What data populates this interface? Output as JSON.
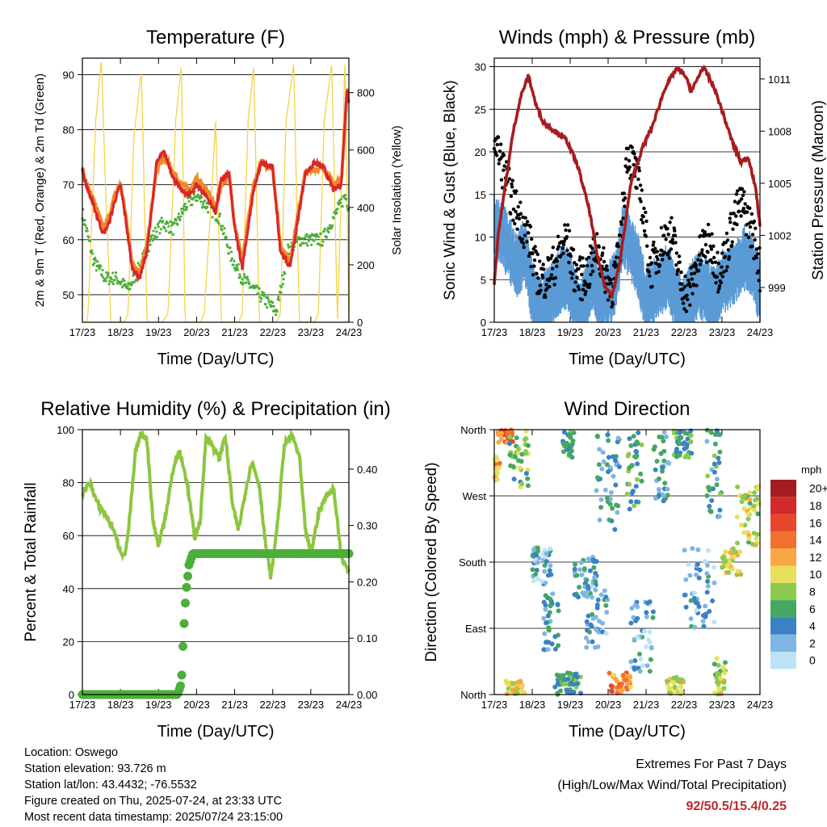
{
  "x_tick_labels": [
    "17/23",
    "18/23",
    "19/23",
    "20/23",
    "21/23",
    "22/23",
    "23/23",
    "24/23"
  ],
  "x_label": "Time (Day/UTC)",
  "chart_data": [
    {
      "type": "line",
      "title": "Temperature (F)",
      "xlabel": "Time (Day/UTC)",
      "ylabel": "2m & 9m T (Red, Orange) & 2m Td (Green)",
      "ylabel_right": "Solar Insolation (Yellow)",
      "ylim": [
        45,
        93
      ],
      "yticks": [
        50,
        60,
        70,
        80,
        90
      ],
      "ylim_right": [
        0,
        920
      ],
      "yticks_right": [
        0,
        200,
        400,
        600,
        800
      ],
      "x_range_days": [
        0,
        7
      ],
      "colors": {
        "t2m": "#d9262b",
        "t9m": "#f08a2b",
        "td": "#4caf3b",
        "solar": "#f3d34a"
      },
      "series": [
        {
          "key": "t9m",
          "x": [
            0,
            0.1,
            0.3,
            0.55,
            0.7,
            0.85,
            1.0,
            1.15,
            1.3,
            1.5,
            1.7,
            1.95,
            2.15,
            2.4,
            2.6,
            2.8,
            3.0,
            3.25,
            3.5,
            3.65,
            3.85,
            4.0,
            4.2,
            4.5,
            4.7,
            5.0,
            5.2,
            5.45,
            5.65,
            5.85,
            6.1,
            6.35,
            6.6,
            6.8,
            6.95,
            7.0
          ],
          "values": [
            73,
            70,
            67,
            62,
            64,
            68,
            70,
            64,
            56,
            54,
            59,
            73,
            75,
            72,
            70,
            69,
            71,
            69,
            66,
            70,
            72,
            63,
            56,
            70,
            74,
            73,
            59,
            56,
            64,
            72,
            73,
            73,
            70,
            71,
            86,
            87
          ]
        },
        {
          "key": "t2m",
          "x": [
            0,
            0.1,
            0.3,
            0.55,
            0.7,
            0.85,
            1.0,
            1.15,
            1.3,
            1.5,
            1.7,
            1.95,
            2.15,
            2.4,
            2.6,
            2.8,
            3.0,
            3.25,
            3.5,
            3.65,
            3.85,
            4.0,
            4.2,
            4.5,
            4.7,
            5.0,
            5.2,
            5.45,
            5.65,
            5.85,
            6.1,
            6.35,
            6.6,
            6.8,
            6.95,
            7.0
          ],
          "values": [
            73,
            70,
            66,
            61,
            63,
            67,
            70,
            63,
            55,
            53,
            58,
            74,
            76,
            71,
            69,
            68,
            70,
            68,
            65,
            71,
            72,
            62,
            55,
            69,
            74,
            73,
            58,
            55,
            63,
            72,
            74,
            73,
            69,
            70,
            88,
            85
          ]
        },
        {
          "key": "td",
          "x": [
            0,
            0.3,
            0.6,
            0.9,
            1.2,
            1.5,
            1.8,
            2.1,
            2.4,
            2.7,
            3.0,
            3.3,
            3.6,
            3.9,
            4.2,
            4.5,
            4.8,
            5.1,
            5.4,
            5.7,
            6.0,
            6.3,
            6.6,
            6.9,
            7.0
          ],
          "values": [
            65,
            56,
            53,
            53,
            51,
            55,
            60,
            63,
            62,
            66,
            68,
            66,
            64,
            57,
            53,
            51,
            49,
            47,
            58,
            60,
            60,
            60,
            64,
            68,
            66
          ]
        },
        {
          "key": "solar",
          "x": [
            0,
            0.1,
            0.15,
            0.35,
            0.5,
            0.6,
            0.75,
            1.1,
            1.2,
            1.35,
            1.55,
            1.7,
            2.1,
            2.25,
            2.45,
            2.6,
            2.7,
            3.1,
            3.2,
            3.35,
            3.5,
            3.65,
            4.1,
            4.2,
            4.35,
            4.5,
            4.65,
            5.1,
            5.2,
            5.35,
            5.55,
            5.7,
            6.1,
            6.2,
            6.35,
            6.55,
            6.7,
            6.9,
            7.0
          ],
          "values": [
            0,
            0,
            30,
            700,
            920,
            500,
            0,
            0,
            30,
            640,
            880,
            0,
            0,
            30,
            700,
            900,
            0,
            0,
            30,
            350,
            700,
            0,
            0,
            30,
            700,
            890,
            0,
            0,
            30,
            700,
            900,
            0,
            0,
            30,
            700,
            900,
            0,
            920,
            0
          ]
        }
      ]
    },
    {
      "type": "line",
      "title": "Winds (mph) & Pressure (mb)",
      "xlabel": "Time (Day/UTC)",
      "ylabel": "Sonic Wind & Gust (Blue, Black)",
      "ylabel_right": "Station Pressure (Maroon)",
      "ylim": [
        0,
        31
      ],
      "yticks": [
        0,
        5,
        10,
        15,
        20,
        25,
        30
      ],
      "ylim_right": [
        997.0,
        1012.2
      ],
      "yticks_right": [
        999,
        1002,
        1005,
        1008,
        1011
      ],
      "x_range_days": [
        0,
        7
      ],
      "colors": {
        "wind": "#5b9bd5",
        "gust": "#000000",
        "pressure": "#a61c1f"
      },
      "series": [
        {
          "key": "pressure",
          "x": [
            0,
            0.1,
            0.3,
            0.5,
            0.7,
            0.9,
            1.1,
            1.3,
            1.6,
            1.9,
            2.2,
            2.5,
            2.7,
            2.9,
            3.1,
            3.3,
            3.6,
            3.9,
            4.2,
            4.5,
            4.8,
            5.0,
            5.2,
            5.5,
            5.8,
            6.1,
            6.3,
            6.5,
            6.7,
            6.9,
            7.0
          ],
          "values": [
            999.2,
            1002,
            1005,
            1008,
            1010,
            1011.2,
            1009.5,
            1008.5,
            1008,
            1007.5,
            1006,
            1003.5,
            1001,
            999.2,
            998.5,
            1000.3,
            1005,
            1007,
            1008.5,
            1010.5,
            1011.6,
            1011.3,
            1010.3,
            1011.7,
            1010.5,
            1008.5,
            1007.2,
            1006.2,
            1006.5,
            1004.5,
            1002.5
          ]
        },
        {
          "key": "wind",
          "x": [
            0,
            0.2,
            0.4,
            0.6,
            0.8,
            1.0,
            1.2,
            1.4,
            1.6,
            1.8,
            2.0,
            2.2,
            2.4,
            2.6,
            2.8,
            3.0,
            3.2,
            3.4,
            3.6,
            3.8,
            4.0,
            4.2,
            4.4,
            4.6,
            4.8,
            5.0,
            5.2,
            5.4,
            5.6,
            5.8,
            6.0,
            6.2,
            6.4,
            6.6,
            6.8,
            7.0
          ],
          "values": [
            12,
            11,
            9,
            7,
            9,
            4,
            2,
            3,
            4,
            6,
            5,
            2,
            3,
            6,
            3,
            4,
            5,
            11,
            9,
            7,
            3,
            4,
            5,
            6,
            3,
            2,
            4,
            5,
            4,
            3,
            5,
            6,
            7,
            8,
            7,
            4
          ]
        },
        {
          "key": "gust",
          "x": [
            0,
            0.1,
            0.3,
            0.5,
            0.7,
            0.9,
            1.1,
            1.3,
            1.5,
            1.7,
            1.9,
            2.1,
            2.3,
            2.5,
            2.7,
            2.9,
            3.1,
            3.3,
            3.5,
            3.7,
            3.9,
            4.1,
            4.3,
            4.5,
            4.7,
            4.9,
            5.1,
            5.3,
            5.5,
            5.7,
            5.9,
            6.1,
            6.3,
            6.5,
            6.7,
            6.9,
            7.0
          ],
          "values": [
            22,
            20,
            17,
            14,
            12,
            10,
            6,
            5,
            6,
            8,
            10,
            6,
            5,
            6,
            9,
            6,
            4,
            8,
            20,
            18,
            14,
            6,
            8,
            10,
            10,
            5,
            3,
            6,
            9,
            9,
            6,
            8,
            12,
            14,
            12,
            9,
            6
          ]
        }
      ]
    },
    {
      "type": "line",
      "title": "Relative Humidity (%) & Precipitation (in)",
      "xlabel": "Time (Day/UTC)",
      "ylabel": "Percent & Total Rainfall",
      "ylim": [
        0,
        100
      ],
      "yticks": [
        0,
        20,
        40,
        60,
        80,
        100
      ],
      "ylim_right": [
        0,
        0.47
      ],
      "yticks_right_labels": [
        "0.00",
        "0.10",
        "0.20",
        "0.30",
        "0.40"
      ],
      "yticks_right": [
        0.0,
        0.1,
        0.2,
        0.3,
        0.4
      ],
      "x_range_days": [
        0,
        7
      ],
      "colors": {
        "rh": "#8dc63f",
        "precip": "#4caf3b"
      },
      "series": [
        {
          "key": "rh",
          "x": [
            0,
            0.2,
            0.4,
            0.6,
            0.8,
            0.95,
            1.1,
            1.2,
            1.4,
            1.55,
            1.7,
            1.85,
            2.0,
            2.2,
            2.4,
            2.55,
            2.75,
            2.95,
            3.1,
            3.25,
            3.45,
            3.6,
            3.75,
            3.95,
            4.1,
            4.3,
            4.45,
            4.65,
            4.8,
            4.95,
            5.15,
            5.3,
            5.5,
            5.7,
            5.85,
            6.0,
            6.2,
            6.4,
            6.6,
            6.8,
            7.0
          ],
          "values": [
            76,
            80,
            72,
            68,
            63,
            56,
            52,
            60,
            92,
            99,
            96,
            66,
            56,
            69,
            86,
            92,
            80,
            59,
            66,
            98,
            93,
            89,
            98,
            71,
            62,
            78,
            88,
            79,
            58,
            44,
            68,
            94,
            98,
            90,
            63,
            53,
            68,
            75,
            78,
            52,
            46
          ]
        },
        {
          "key": "precip",
          "x": [
            0,
            2.5,
            2.6,
            2.65,
            2.72,
            2.8,
            2.9,
            3.5,
            4.5,
            5.5,
            6.5,
            7.0
          ],
          "values": [
            0.0,
            0.0,
            0.02,
            0.1,
            0.18,
            0.23,
            0.25,
            0.25,
            0.25,
            0.25,
            0.25,
            0.25
          ]
        }
      ]
    },
    {
      "type": "scatter",
      "title": "Wind Direction",
      "xlabel": "Time (Day/UTC)",
      "ylabel": "Direction (Colored By Speed)",
      "ytick_labels": [
        "North",
        "East",
        "South",
        "West",
        "North"
      ],
      "ylim": [
        0,
        360
      ],
      "x_range_days": [
        0,
        7
      ],
      "legend": {
        "unit": "mph",
        "placement": "right",
        "labels": [
          "20+",
          "18",
          "16",
          "14",
          "12",
          "10",
          "8",
          "6",
          "4",
          "2",
          "0"
        ],
        "colors": [
          "#a31c20",
          "#d22a2a",
          "#e8452d",
          "#f36f2f",
          "#f9a645",
          "#e8e05a",
          "#8cca4f",
          "#44a862",
          "#3b82c4",
          "#7fb6e3",
          "#bfe3f6"
        ]
      },
      "clusters": [
        {
          "x0": 0.0,
          "x1": 0.15,
          "y0": 290,
          "y1": 330,
          "speed": 12
        },
        {
          "x0": 0.1,
          "x1": 0.5,
          "y0": 340,
          "y1": 360,
          "speed": 14
        },
        {
          "x0": 0.4,
          "x1": 0.9,
          "y0": 280,
          "y1": 360,
          "speed": 7
        },
        {
          "x0": 0.3,
          "x1": 0.8,
          "y0": 0,
          "y1": 20,
          "speed": 10
        },
        {
          "x0": 1.0,
          "x1": 1.5,
          "y0": 150,
          "y1": 200,
          "speed": 3
        },
        {
          "x0": 1.3,
          "x1": 1.7,
          "y0": 60,
          "y1": 140,
          "speed": 4
        },
        {
          "x0": 1.6,
          "x1": 2.3,
          "y0": 0,
          "y1": 30,
          "speed": 6
        },
        {
          "x0": 1.8,
          "x1": 2.1,
          "y0": 320,
          "y1": 360,
          "speed": 6
        },
        {
          "x0": 2.1,
          "x1": 2.7,
          "y0": 130,
          "y1": 190,
          "speed": 4
        },
        {
          "x0": 2.4,
          "x1": 3.0,
          "y0": 60,
          "y1": 150,
          "speed": 3
        },
        {
          "x0": 2.6,
          "x1": 3.3,
          "y0": 220,
          "y1": 360,
          "speed": 4
        },
        {
          "x0": 3.0,
          "x1": 3.6,
          "y0": 0,
          "y1": 30,
          "speed": 13
        },
        {
          "x0": 3.5,
          "x1": 3.9,
          "y0": 250,
          "y1": 360,
          "speed": 6
        },
        {
          "x0": 3.6,
          "x1": 4.2,
          "y0": 30,
          "y1": 130,
          "speed": 3
        },
        {
          "x0": 4.2,
          "x1": 4.6,
          "y0": 260,
          "y1": 360,
          "speed": 4
        },
        {
          "x0": 4.5,
          "x1": 5.0,
          "y0": 0,
          "y1": 25,
          "speed": 10
        },
        {
          "x0": 4.7,
          "x1": 5.2,
          "y0": 320,
          "y1": 360,
          "speed": 6
        },
        {
          "x0": 5.0,
          "x1": 5.8,
          "y0": 90,
          "y1": 200,
          "speed": 3
        },
        {
          "x0": 5.6,
          "x1": 6.0,
          "y0": 240,
          "y1": 360,
          "speed": 5
        },
        {
          "x0": 5.8,
          "x1": 6.1,
          "y0": 0,
          "y1": 50,
          "speed": 9
        },
        {
          "x0": 6.0,
          "x1": 6.5,
          "y0": 160,
          "y1": 200,
          "speed": 10
        },
        {
          "x0": 6.4,
          "x1": 7.0,
          "y0": 200,
          "y1": 290,
          "speed": 9
        }
      ]
    }
  ],
  "station": {
    "location": "Location: Oswego",
    "elevation": "Station elevation: 93.726 m",
    "latlon": "Station lat/lon: 43.4432; -76.5532",
    "created": "Figure created on Thu, 2025-07-24, at 23:33 UTC",
    "latest": "Most recent data timestamp: 2025/07/24 23:15:00"
  },
  "extremes": {
    "title": "Extremes For Past 7 Days",
    "subtitle": "(High/Low/Max Wind/Total Precipitation)",
    "values": "92/50.5/15.4/0.25"
  }
}
